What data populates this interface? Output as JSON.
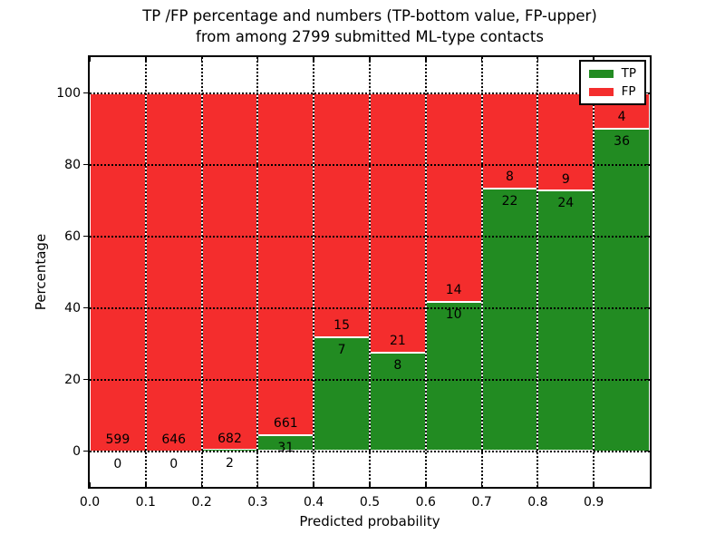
{
  "title": {
    "line1": "TP /FP percentage and numbers (TP-bottom value, FP-upper)",
    "line2": "from among 2799 submitted ML-type contacts"
  },
  "axes": {
    "xlabel": "Predicted probability",
    "ylabel": "Percentage",
    "xticks": [
      "0.0",
      "0.1",
      "0.2",
      "0.3",
      "0.4",
      "0.5",
      "0.6",
      "0.7",
      "0.8",
      "0.9"
    ],
    "yticks": [
      0,
      20,
      40,
      60,
      80,
      100
    ],
    "xlim": [
      0.0,
      1.0
    ],
    "ylim": [
      -10,
      110
    ],
    "grid_style": "dotted"
  },
  "legend": {
    "position": "upper right",
    "items": [
      {
        "label": "TP",
        "color": "#228b22"
      },
      {
        "label": "FP",
        "color": "#f42d2d"
      }
    ]
  },
  "colors": {
    "tp_green": "#228b22",
    "fp_red": "#f42d2d",
    "bar_edge": "#ffffff",
    "grid": "#000000"
  },
  "chart_data": {
    "type": "bar",
    "stacked": true,
    "normalized_height": 100,
    "title": "TP /FP percentage and numbers (TP-bottom value, FP-upper) from among 2799 submitted ML-type contacts",
    "xlabel": "Predicted probability",
    "ylabel": "Percentage",
    "xlim": [
      0.0,
      1.0
    ],
    "ylim": [
      -10,
      110
    ],
    "bin_width": 0.1,
    "bin_starts": [
      0.0,
      0.1,
      0.2,
      0.3,
      0.4,
      0.5,
      0.6,
      0.7,
      0.8,
      0.9
    ],
    "categories": [
      "0.0",
      "0.1",
      "0.2",
      "0.3",
      "0.4",
      "0.5",
      "0.6",
      "0.7",
      "0.8",
      "0.9"
    ],
    "series": [
      {
        "name": "TP",
        "color": "#228b22",
        "counts": [
          0,
          0,
          2,
          31,
          7,
          8,
          10,
          22,
          24,
          36
        ],
        "percent": [
          0.0,
          0.0,
          0.29,
          4.48,
          31.82,
          27.59,
          41.67,
          73.33,
          72.73,
          90.0
        ]
      },
      {
        "name": "FP",
        "color": "#f42d2d",
        "counts": [
          599,
          646,
          682,
          661,
          15,
          21,
          14,
          8,
          9,
          4
        ],
        "percent": [
          100.0,
          100.0,
          99.71,
          95.52,
          68.18,
          72.41,
          58.33,
          26.67,
          27.27,
          10.0
        ]
      }
    ],
    "total_contacts": 2799,
    "legend_position": "upper right",
    "grid": "dotted"
  }
}
